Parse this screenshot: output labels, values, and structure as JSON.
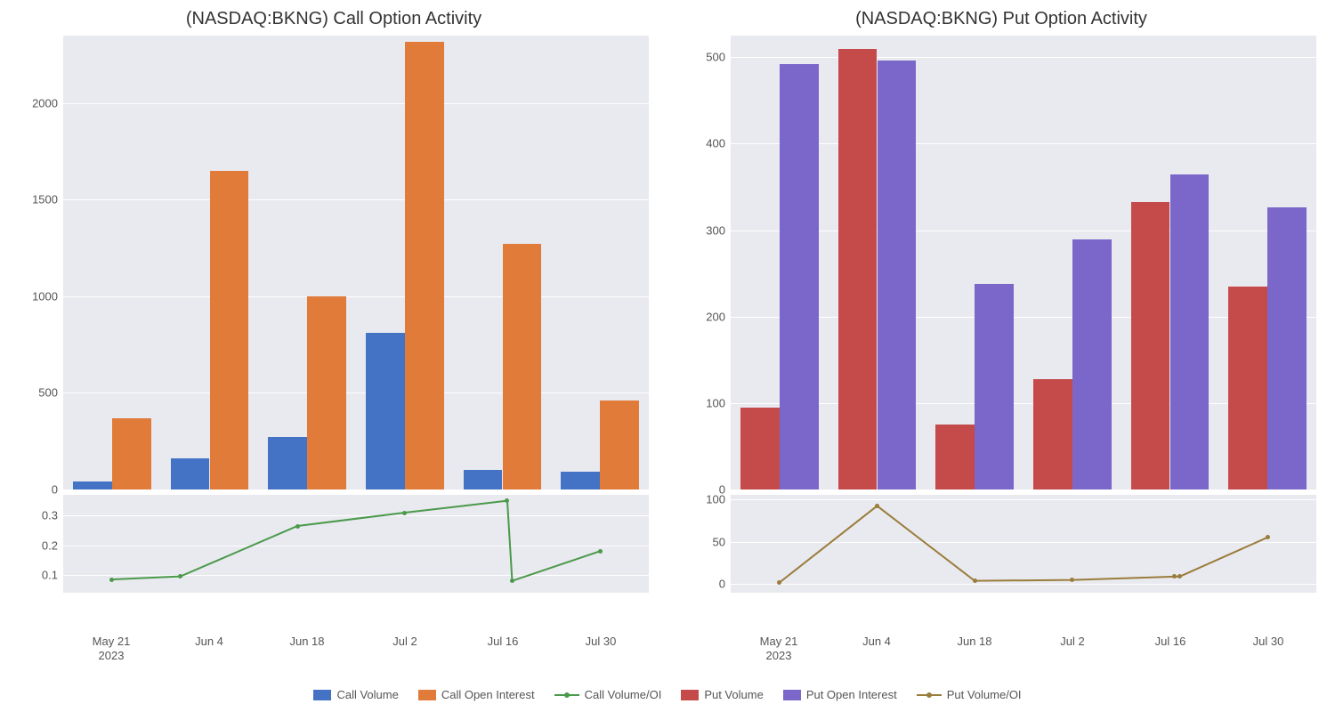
{
  "layout": {
    "background_color": "#ffffff",
    "plot_bg": "#e9e9f0",
    "grid_color": "#ffffff",
    "tick_color": "#555555",
    "title_fontsize": 20,
    "tick_fontsize": 13
  },
  "x_categories": [
    "May 21",
    "Jun 4",
    "Jun 18",
    "Jul 2",
    "Jul 16",
    "Jul 30"
  ],
  "x_year_note": "2023",
  "call_chart": {
    "title": "(NASDAQ:BKNG) Call Option Activity",
    "type": "bar_plus_line",
    "data_dates_offset": [
      0,
      1,
      2,
      3,
      4,
      5
    ],
    "bars": {
      "series": [
        {
          "name": "Call Volume",
          "color": "#4472c4",
          "values": [
            40,
            160,
            270,
            810,
            100,
            90
          ]
        },
        {
          "name": "Call Open Interest",
          "color": "#e07b39",
          "values": [
            370,
            1650,
            1000,
            2320,
            1270,
            460
          ]
        }
      ],
      "ylim": [
        0,
        2350
      ],
      "yticks": [
        0,
        500,
        1000,
        1500,
        2000
      ],
      "bar_width": 0.4
    },
    "line": {
      "name": "Call Volume/OI",
      "color": "#4a9a4a",
      "x_points": [
        0,
        0.7,
        1.9,
        3.0,
        4.05,
        4.1,
        5.0
      ],
      "y_points": [
        0.085,
        0.095,
        0.265,
        0.31,
        0.35,
        0.08,
        0.18
      ],
      "ylim": [
        0.04,
        0.37
      ],
      "yticks": [
        0.1,
        0.2,
        0.3
      ],
      "marker": "circle",
      "marker_size": 5,
      "line_width": 2
    }
  },
  "put_chart": {
    "title": "(NASDAQ:BKNG) Put Option Activity",
    "type": "bar_plus_line",
    "data_dates_offset": [
      0,
      1,
      2,
      3,
      4,
      5
    ],
    "bars": {
      "series": [
        {
          "name": "Put Volume",
          "color": "#c54b4b",
          "values": [
            95,
            510,
            75,
            128,
            333,
            235
          ]
        },
        {
          "name": "Put Open Interest",
          "color": "#7b67c9",
          "values": [
            492,
            496,
            238,
            289,
            364,
            326
          ]
        }
      ],
      "ylim": [
        0,
        525
      ],
      "yticks": [
        0,
        100,
        200,
        300,
        400,
        500
      ],
      "bar_width": 0.4
    },
    "line": {
      "name": "Put Volume/OI",
      "color": "#9a7d3a",
      "x_points": [
        0,
        1.0,
        2.0,
        3.0,
        4.05,
        4.1,
        5.0
      ],
      "y_points": [
        2,
        92,
        4,
        5,
        9,
        9,
        55
      ],
      "ylim": [
        -10,
        105
      ],
      "yticks": [
        0,
        50,
        100
      ],
      "marker": "circle",
      "marker_size": 5,
      "line_width": 2
    }
  },
  "legend": [
    {
      "label": "Call Volume",
      "type": "rect",
      "color": "#4472c4"
    },
    {
      "label": "Call Open Interest",
      "type": "rect",
      "color": "#e07b39"
    },
    {
      "label": "Call Volume/OI",
      "type": "line",
      "color": "#4a9a4a"
    },
    {
      "label": "Put Volume",
      "type": "rect",
      "color": "#c54b4b"
    },
    {
      "label": "Put Open Interest",
      "type": "rect",
      "color": "#7b67c9"
    },
    {
      "label": "Put Volume/OI",
      "type": "line",
      "color": "#9a7d3a"
    }
  ]
}
